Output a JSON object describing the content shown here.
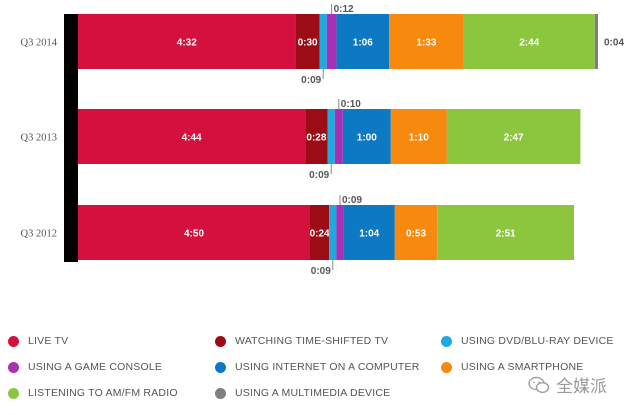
{
  "chart_data": {
    "type": "bar",
    "orientation": "horizontal",
    "stacked": true,
    "unit": "hours:minutes",
    "categories": [
      "Q3 2014",
      "Q3 2013",
      "Q3 2012"
    ],
    "series": [
      {
        "name": "LIVE TV",
        "color": "#d4103f",
        "label_color": "#ffffff",
        "values": [
          "4:32",
          "4:44",
          "4:50"
        ],
        "label_pos": [
          "inside",
          "inside",
          "inside"
        ]
      },
      {
        "name": "WATCHING TIME-SHIFTED TV",
        "color": "#9b0c14",
        "label_color": "#ffffff",
        "values": [
          "0:30",
          "0:28",
          "0:24"
        ],
        "label_pos": [
          "inside",
          "inside",
          "inside"
        ]
      },
      {
        "name": "USING DVD/BLU-RAY DEVICE",
        "color": "#1fa9e1",
        "label_color": "#555555",
        "values": [
          "0:09",
          "0:09",
          "0:09"
        ],
        "label_pos": [
          "below",
          "below",
          "below"
        ]
      },
      {
        "name": "USING A GAME CONSOLE",
        "color": "#a92fb4",
        "label_color": "#555555",
        "values": [
          "0:12",
          "0:10",
          "0:09"
        ],
        "label_pos": [
          "above",
          "above",
          "above"
        ]
      },
      {
        "name": "USING INTERNET ON A COMPUTER",
        "color": "#0d79c2",
        "label_color": "#ffffff",
        "values": [
          "1:06",
          "1:00",
          "1:04"
        ],
        "label_pos": [
          "inside",
          "inside",
          "inside"
        ]
      },
      {
        "name": "USING A SMARTPHONE",
        "color": "#f7890f",
        "label_color": "#ffffff",
        "values": [
          "1:33",
          "1:10",
          "0:53"
        ],
        "label_pos": [
          "inside",
          "inside",
          "inside"
        ]
      },
      {
        "name": "LISTENING TO AM/FM RADIO",
        "color": "#8cc63e",
        "label_color": "#ffffff",
        "values": [
          "2:44",
          "2:47",
          "2:51"
        ],
        "label_pos": [
          "inside",
          "inside",
          "inside"
        ]
      },
      {
        "name": "USING A MULTIMEDIA DEVICE",
        "color": "#7f7f7f",
        "label_color": "#555555",
        "values": [
          "0:04",
          null,
          null
        ],
        "label_pos": [
          "right",
          null,
          null
        ]
      }
    ],
    "legend_position": "bottom"
  },
  "watermark": {
    "text": "全媒派"
  }
}
